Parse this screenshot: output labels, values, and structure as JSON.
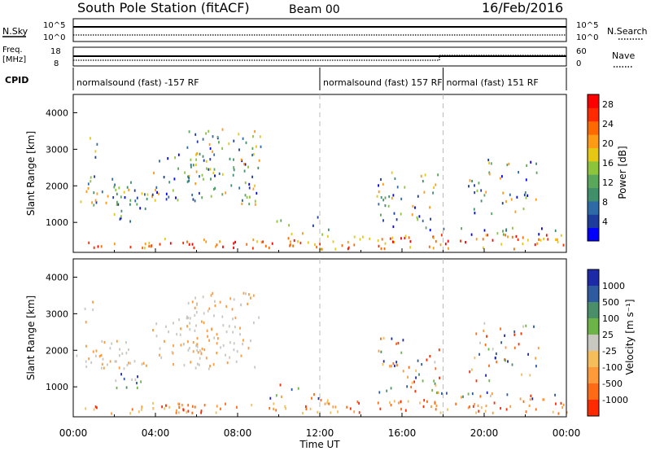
{
  "header": {
    "station": "South Pole Station (fitACF)",
    "beam": "Beam 00",
    "date": "16/Feb/2016"
  },
  "labels": {
    "nsky": "N.Sky",
    "freq_line1": "Freq.",
    "freq_line2": "[MHz]",
    "cpid": "CPID",
    "nsearch": "N.Search",
    "nave": "Nave",
    "slant_range": "Slant Range [km]",
    "time_ut": "Time UT",
    "power_label": "Power [dB]",
    "velocity_label": "Velocity [m s⁻¹]"
  },
  "noise_axis": {
    "left_top": "10^5",
    "left_bottom": "10^0",
    "right_top": "10^5",
    "right_bottom": "10^0"
  },
  "freq_axis": {
    "left_top": "18",
    "left_bottom": "8",
    "right_top": "60",
    "right_bottom": "0"
  },
  "cpid_segments": [
    {
      "label": "normalsound (fast) -157 RF",
      "start_hour": 0
    },
    {
      "label": "normalsound (fast) 157 RF",
      "start_hour": 12
    },
    {
      "label": "normal (fast) 151 RF",
      "start_hour": 18
    }
  ],
  "chart_data": [
    {
      "type": "heatmap",
      "name": "power",
      "xlabel": "Time UT",
      "ylabel": "Slant Range [km]",
      "x_ticks": [
        "00:00",
        "04:00",
        "08:00",
        "12:00",
        "16:00",
        "20:00",
        "00:00"
      ],
      "x_range_hours": [
        0,
        24
      ],
      "y_ticks": [
        "1000",
        "2000",
        "3000",
        "4000"
      ],
      "y_range_km": [
        180,
        4500
      ],
      "colorbar": {
        "label": "Power [dB]",
        "ticks": [
          "4",
          "8",
          "12",
          "16",
          "20",
          "24",
          "28"
        ],
        "range": [
          0,
          30
        ],
        "colors": [
          "#0000ff",
          "#1e3c9c",
          "#2d6aa6",
          "#3f8f6a",
          "#5aa65a",
          "#8cc43c",
          "#e6c814",
          "#ff9a14",
          "#ff6a00",
          "#ff2a00",
          "#ff0000"
        ]
      }
    },
    {
      "type": "heatmap",
      "name": "velocity",
      "xlabel": "Time UT",
      "ylabel": "Slant Range [km]",
      "x_ticks": [
        "00:00",
        "04:00",
        "08:00",
        "12:00",
        "16:00",
        "20:00",
        "00:00"
      ],
      "x_range_hours": [
        0,
        24
      ],
      "y_ticks": [
        "1000",
        "2000",
        "3000",
        "4000"
      ],
      "y_range_km": [
        180,
        4500
      ],
      "colorbar": {
        "label": "Velocity [m s⁻¹]",
        "ticks": [
          "1000",
          "500",
          "100",
          "25",
          "-25",
          "-100",
          "-500",
          "-1000"
        ],
        "colors": [
          "#1c2aa8",
          "#2e5aa0",
          "#4a8e6a",
          "#6cb448",
          "#c8c8c0",
          "#f5be5a",
          "#ff9a3a",
          "#ff6a14",
          "#ff2a00"
        ]
      }
    }
  ]
}
